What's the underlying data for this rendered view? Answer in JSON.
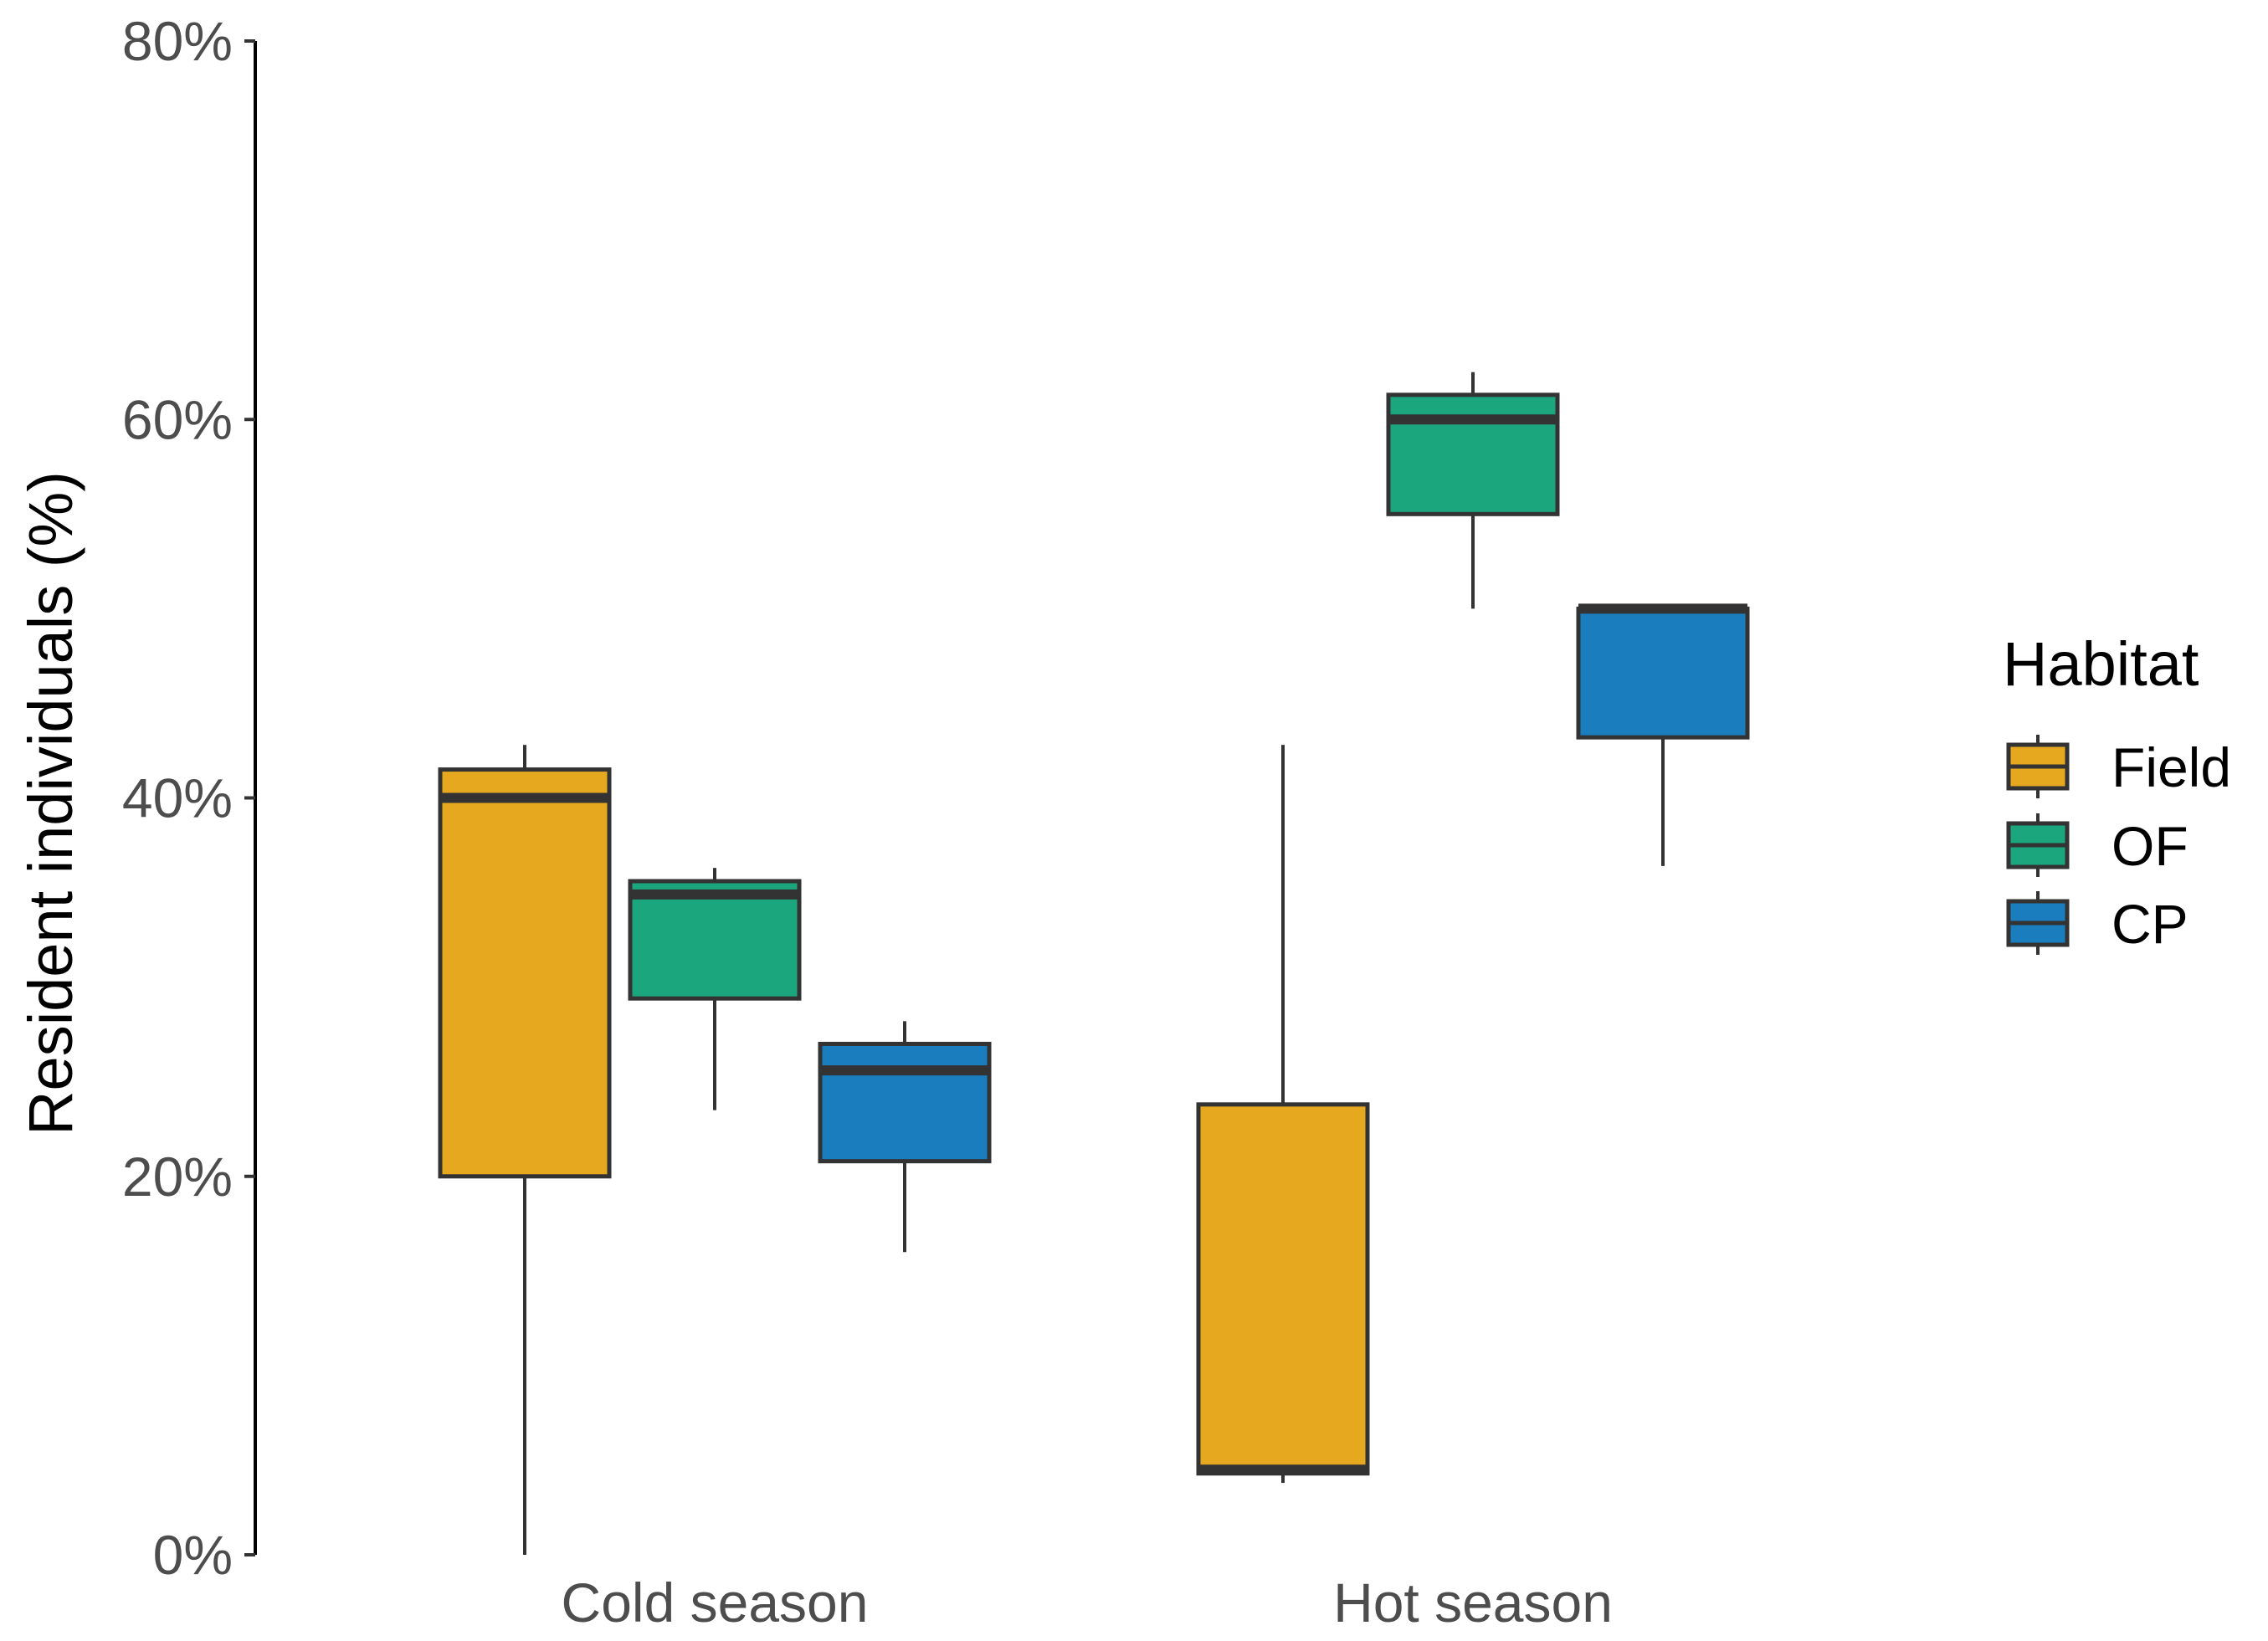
{
  "chart_data": {
    "type": "boxplot",
    "title": "",
    "xlabel": "",
    "ylabel": "Resident individuals (%)",
    "ylim": [
      0,
      80
    ],
    "y_ticks": [
      0,
      20,
      40,
      60,
      80
    ],
    "y_tick_labels": [
      "0%",
      "20%",
      "40%",
      "60%",
      "80%"
    ],
    "categories": [
      "Cold season",
      "Hot season"
    ],
    "legend": {
      "title": "Habitat",
      "position": "right"
    },
    "colors": {
      "Field": "#E6A81E",
      "OF": "#1BA67E",
      "CP": "#1A7DBD",
      "outline": "#333333"
    },
    "series": [
      {
        "name": "Field",
        "boxes": [
          {
            "category": "Cold season",
            "min": 0,
            "q1": 20,
            "median": 40,
            "q3": 41.5,
            "max": 42.8
          },
          {
            "category": "Hot season",
            "min": 3.8,
            "q1": 4.3,
            "median": 4.5,
            "q3": 23.8,
            "max": 42.8
          }
        ]
      },
      {
        "name": "OF",
        "boxes": [
          {
            "category": "Cold season",
            "min": 23.5,
            "q1": 29.4,
            "median": 34.9,
            "q3": 35.6,
            "max": 36.3
          },
          {
            "category": "Hot season",
            "min": 50,
            "q1": 55,
            "median": 60,
            "q3": 61.3,
            "max": 62.5
          }
        ]
      },
      {
        "name": "CP",
        "boxes": [
          {
            "category": "Cold season",
            "min": 16,
            "q1": 20.8,
            "median": 25.6,
            "q3": 27,
            "max": 28.2
          },
          {
            "category": "Hot season",
            "min": 36.4,
            "q1": 43.2,
            "median": 50,
            "q3": 50,
            "max": 50
          }
        ]
      }
    ]
  }
}
